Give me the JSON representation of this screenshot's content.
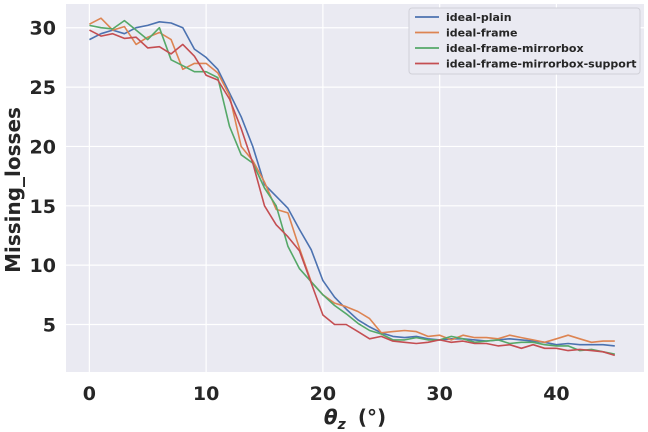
{
  "chart_data": {
    "type": "line",
    "xlabel_symbol": "θ",
    "xlabel_subscript": "z",
    "xlabel_unit": "(°)",
    "ylabel": "Missing_losses",
    "xlim": [
      -2,
      47.5
    ],
    "ylim": [
      1.0,
      32.0
    ],
    "xticks": [
      0,
      10,
      20,
      30,
      40
    ],
    "yticks": [
      5,
      10,
      15,
      20,
      25,
      30
    ],
    "grid": true,
    "legend_position": "top-right",
    "x": [
      0,
      1,
      2,
      3,
      4,
      5,
      6,
      7,
      8,
      9,
      10,
      11,
      12,
      13,
      14,
      15,
      16,
      17,
      18,
      19,
      20,
      21,
      22,
      23,
      24,
      25,
      26,
      27,
      28,
      29,
      30,
      31,
      32,
      33,
      34,
      35,
      36,
      37,
      38,
      39,
      40,
      41,
      42,
      43,
      44,
      45
    ],
    "series": [
      {
        "name": "ideal-plain",
        "color": "#4c72b0",
        "values": [
          29.0,
          29.5,
          29.8,
          29.5,
          30.0,
          30.2,
          30.5,
          30.4,
          30.0,
          28.2,
          27.5,
          26.5,
          24.5,
          22.5,
          20.0,
          16.8,
          15.8,
          14.8,
          13.0,
          11.3,
          8.7,
          7.3,
          6.3,
          5.4,
          4.8,
          4.3,
          4.0,
          3.9,
          4.0,
          3.8,
          3.7,
          3.8,
          3.8,
          3.7,
          3.6,
          3.7,
          3.8,
          3.7,
          3.6,
          3.5,
          3.3,
          3.4,
          3.3,
          3.3,
          3.3,
          3.2
        ]
      },
      {
        "name": "ideal-frame",
        "color": "#dd8452",
        "values": [
          30.3,
          30.8,
          29.8,
          30.1,
          28.6,
          29.2,
          29.6,
          29.0,
          26.5,
          27.0,
          27.0,
          26.2,
          24.3,
          20.0,
          18.8,
          17.0,
          14.7,
          14.4,
          11.4,
          8.6,
          7.5,
          6.8,
          6.5,
          6.1,
          5.5,
          4.3,
          4.4,
          4.5,
          4.4,
          4.0,
          4.1,
          3.7,
          4.1,
          3.9,
          3.9,
          3.8,
          4.1,
          3.9,
          3.7,
          3.5,
          3.8,
          4.1,
          3.8,
          3.5,
          3.6,
          3.6
        ]
      },
      {
        "name": "ideal-frame-mirrorbox",
        "color": "#55a868",
        "values": [
          30.2,
          30.0,
          29.9,
          30.6,
          29.8,
          29.0,
          30.0,
          27.3,
          26.8,
          26.3,
          26.3,
          25.8,
          21.7,
          19.3,
          18.6,
          16.5,
          15.0,
          11.6,
          9.7,
          8.6,
          7.5,
          6.6,
          5.9,
          5.1,
          4.5,
          4.2,
          3.7,
          3.7,
          3.9,
          3.7,
          3.7,
          4.0,
          3.8,
          3.5,
          3.6,
          3.7,
          3.4,
          3.5,
          3.5,
          3.3,
          3.2,
          3.2,
          2.8,
          2.9,
          2.7,
          2.5
        ]
      },
      {
        "name": "ideal-frame-mirrorbox-support",
        "color": "#c44e52",
        "values": [
          29.8,
          29.3,
          29.5,
          29.1,
          29.2,
          28.3,
          28.4,
          27.8,
          28.6,
          27.6,
          26.0,
          25.6,
          24.0,
          21.5,
          18.6,
          15.0,
          13.4,
          12.4,
          11.2,
          8.5,
          5.8,
          5.0,
          5.0,
          4.4,
          3.8,
          4.0,
          3.6,
          3.5,
          3.4,
          3.5,
          3.7,
          3.5,
          3.6,
          3.4,
          3.4,
          3.2,
          3.3,
          3.0,
          3.3,
          3.0,
          3.0,
          2.8,
          2.9,
          2.8,
          2.7,
          2.4
        ]
      }
    ]
  }
}
